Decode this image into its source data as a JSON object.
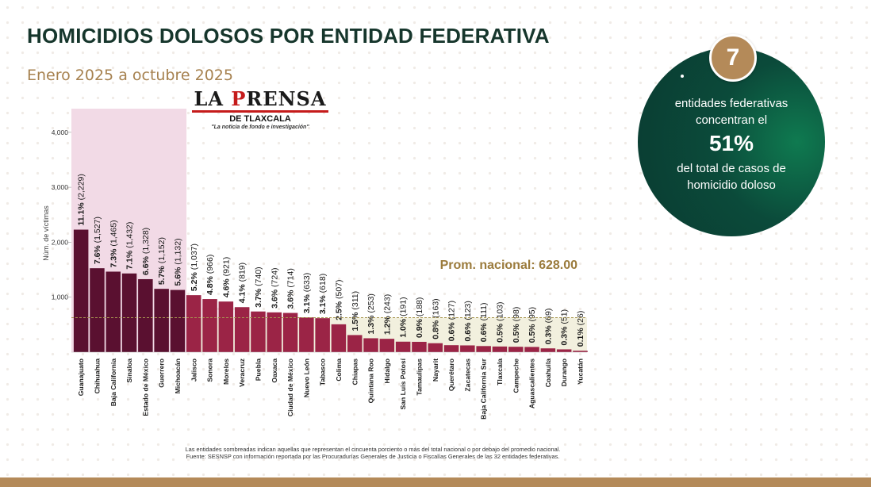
{
  "header": {
    "title": "HOMICIDIOS DOLOSOS POR ENTIDAD FEDERATIVA",
    "subtitle": "Enero 2025 a octubre 2025"
  },
  "logo": {
    "main_l1": "LA ",
    "main_l2": "P",
    "main_l3": "RENSA",
    "sub": "DE TLAXCALA",
    "tagline": "\"La noticia de fondo e investigación\""
  },
  "callout": {
    "number": "7",
    "line1": "entidades federativas",
    "line2": "concentran el",
    "percent": "51%",
    "line3": "del total de casos de",
    "line4": "homicidio doloso"
  },
  "footnote": {
    "line1": "Las entidades sombreadas indican aquellas que representan el cincuenta porciento o más del total nacional o por debajo del promedio nacional.",
    "line2": "Fuente: SESNSP con información reportada por las Procuradurías Generales de Justicia o Fiscalías Generales de las 32 entidades federativas."
  },
  "chart_data": {
    "type": "bar",
    "ylabel": "Núm. de víctimas",
    "ylim": [
      0,
      4500
    ],
    "yticks": [
      {
        "value": 1000,
        "label": "1,000"
      },
      {
        "value": 2000,
        "label": "2,000"
      },
      {
        "value": 3000,
        "label": "3,000"
      },
      {
        "value": 4000,
        "label": "4,000"
      }
    ],
    "average": 628.0,
    "average_label": "Prom. nacional: 628.00",
    "highlight_count": 7,
    "colors": {
      "top_group": "#5a1030",
      "rest": "#9b2446",
      "top_shade": "#f2dae6",
      "avg_shade": "#f2f0de",
      "avg_line": "#a69450",
      "avg_text": "#9b7b3c"
    },
    "categories": [
      "Guanajuato",
      "Chihuahua",
      "Baja California",
      "Sinaloa",
      "Estado de México",
      "Guerrero",
      "Michoacán",
      "Jalisco",
      "Sonora",
      "Morelos",
      "Veracruz",
      "Puebla",
      "Oaxaca",
      "Ciudad de México",
      "Nuevo León",
      "Tabasco",
      "Colima",
      "Chiapas",
      "Quintana Roo",
      "Hidalgo",
      "San Luis Potosí",
      "Tamaulipas",
      "Nayarit",
      "Querétaro",
      "Zacatecas",
      "Baja California Sur",
      "Tlaxcala",
      "Campeche",
      "Aguascalientes",
      "Coahuila",
      "Durango",
      "Yucatán"
    ],
    "values": [
      2229,
      1527,
      1465,
      1432,
      1328,
      1152,
      1132,
      1037,
      966,
      921,
      819,
      740,
      724,
      714,
      633,
      618,
      507,
      311,
      253,
      243,
      191,
      188,
      163,
      127,
      123,
      111,
      103,
      98,
      95,
      69,
      51,
      26
    ],
    "percent_labels": [
      "11.1%",
      "7.6%",
      "7.3%",
      "7.1%",
      "6.6%",
      "5.7%",
      "5.6%",
      "5.2%",
      "4.8%",
      "4.6%",
      "4.1%",
      "3.7%",
      "3.6%",
      "3.6%",
      "3.1%",
      "3.1%",
      "2.5%",
      "1.5%",
      "1.3%",
      "1.2%",
      "1.0%",
      "0.9%",
      "0.8%",
      "0.6%",
      "0.6%",
      "0.6%",
      "0.5%",
      "0.5%",
      "0.5%",
      "0.3%",
      "0.3%",
      "0.1%"
    ],
    "value_labels": [
      "(2,229)",
      "(1,527)",
      "(1,465)",
      "(1,432)",
      "(1,328)",
      "(1,152)",
      "(1,132)",
      "(1,037)",
      "(966)",
      "(921)",
      "(819)",
      "(740)",
      "(724)",
      "(714)",
      "(633)",
      "(618)",
      "(507)",
      "(311)",
      "(253)",
      "(243)",
      "(191)",
      "(188)",
      "(163)",
      "(127)",
      "(123)",
      "(111)",
      "(103)",
      "(98)",
      "(95)",
      "(69)",
      "(51)",
      "(26)"
    ]
  }
}
